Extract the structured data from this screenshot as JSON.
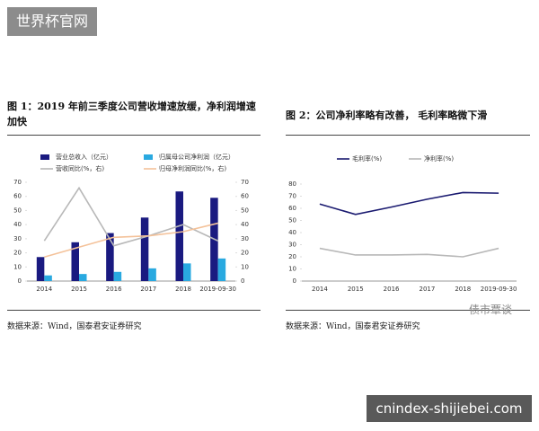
{
  "watermark_top": "世界杯官网",
  "watermark_bottom": "cnindex-shijiebei.com",
  "logo_text": "债市覃谈",
  "chart_data": [
    {
      "type": "combo",
      "title": "图 1：2019 年前三季度公司营收增速放缓，净利润增速加快",
      "source": "数据来源：Wind，国泰君安证券研究",
      "categories": [
        "2014",
        "2015",
        "2016",
        "2017",
        "2018",
        "2019-09-30"
      ],
      "ylim": [
        0,
        70
      ],
      "yticks": [
        0,
        10,
        20,
        30,
        40,
        50,
        60,
        70
      ],
      "y2lim": [
        0,
        70
      ],
      "y2ticks": [
        0,
        10,
        20,
        30,
        40,
        50,
        60,
        70
      ],
      "series": [
        {
          "name": "营业总收入（亿元）",
          "type": "bar",
          "color": "#1a1a80",
          "values": [
            17,
            27.5,
            34,
            45,
            63.5,
            59
          ]
        },
        {
          "name": "归属母公司净利润（亿元）",
          "type": "bar",
          "color": "#29a9e0",
          "values": [
            4,
            5,
            6.5,
            9,
            12.5,
            16
          ]
        },
        {
          "name": "营收同比(%，右)",
          "type": "line",
          "axis": "y2",
          "color": "#b8b8b8",
          "values": [
            28.5,
            66,
            25,
            32,
            40,
            28.5
          ]
        },
        {
          "name": "归母净利润同比(%，右)",
          "type": "line",
          "axis": "y2",
          "color": "#f4c29a",
          "values": [
            17,
            24,
            31,
            32,
            35,
            41
          ]
        }
      ]
    },
    {
      "type": "line",
      "title": "图 2：公司净利率略有改善， 毛利率略微下滑",
      "source": "数据来源：Wind，国泰君安证券研究",
      "categories": [
        "2014",
        "2015",
        "2016",
        "2017",
        "2018",
        "2019-09-30"
      ],
      "ylim": [
        0,
        80
      ],
      "yticks": [
        0,
        10,
        20,
        30,
        40,
        50,
        60,
        70,
        80
      ],
      "series": [
        {
          "name": "毛利率(%)",
          "type": "line",
          "color": "#1a1a70",
          "values": [
            63.5,
            55,
            61,
            67.5,
            73,
            72.5
          ]
        },
        {
          "name": "净利率(%)",
          "type": "line",
          "color": "#b8b8b8",
          "values": [
            27,
            21.5,
            21.5,
            22,
            20,
            27
          ]
        }
      ]
    }
  ]
}
